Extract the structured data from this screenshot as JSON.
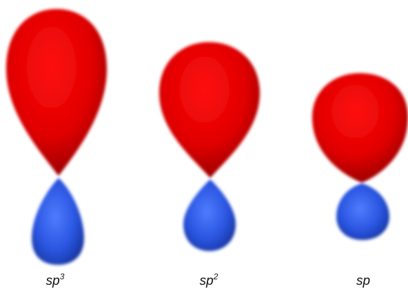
{
  "orbitals": [
    {
      "label": "sp",
      "superscript": "3"
    },
    {
      "label": "sp",
      "superscript": "2"
    },
    {
      "label": "sp"
    }
  ]
}
